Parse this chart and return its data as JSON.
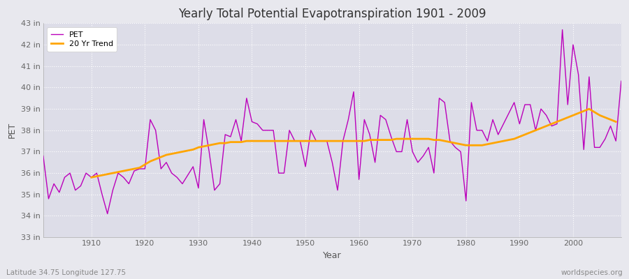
{
  "title": "Yearly Total Potential Evapotranspiration 1901 - 2009",
  "ylabel": "PET",
  "xlabel": "Year",
  "bottom_left": "Latitude 34.75 Longitude 127.75",
  "bottom_right": "worldspecies.org",
  "pet_color": "#BB00BB",
  "trend_color": "#FFA500",
  "fig_bg_color": "#E8E8EE",
  "plot_bg_color": "#DDDDE8",
  "ylim": [
    33,
    43
  ],
  "xlim": [
    1901,
    2009
  ],
  "yticks": [
    33,
    34,
    35,
    36,
    37,
    38,
    39,
    40,
    41,
    42,
    43
  ],
  "xticks": [
    1910,
    1920,
    1930,
    1940,
    1950,
    1960,
    1970,
    1980,
    1990,
    2000
  ],
  "years": [
    1901,
    1902,
    1903,
    1904,
    1905,
    1906,
    1907,
    1908,
    1909,
    1910,
    1911,
    1912,
    1913,
    1914,
    1915,
    1916,
    1917,
    1918,
    1919,
    1920,
    1921,
    1922,
    1923,
    1924,
    1925,
    1926,
    1927,
    1928,
    1929,
    1930,
    1931,
    1932,
    1933,
    1934,
    1935,
    1936,
    1937,
    1938,
    1939,
    1940,
    1941,
    1942,
    1943,
    1944,
    1945,
    1946,
    1947,
    1948,
    1949,
    1950,
    1951,
    1952,
    1953,
    1954,
    1955,
    1956,
    1957,
    1958,
    1959,
    1960,
    1961,
    1962,
    1963,
    1964,
    1965,
    1966,
    1967,
    1968,
    1969,
    1970,
    1971,
    1972,
    1973,
    1974,
    1975,
    1976,
    1977,
    1978,
    1979,
    1980,
    1981,
    1982,
    1983,
    1984,
    1985,
    1986,
    1987,
    1988,
    1989,
    1990,
    1991,
    1992,
    1993,
    1994,
    1995,
    1996,
    1997,
    1998,
    1999,
    2000,
    2001,
    2002,
    2003,
    2004,
    2005,
    2006,
    2007,
    2008,
    2009
  ],
  "pet_values": [
    36.8,
    34.8,
    35.5,
    35.1,
    35.8,
    36.0,
    35.2,
    35.4,
    36.0,
    35.8,
    36.0,
    35.0,
    34.1,
    35.2,
    36.0,
    35.8,
    35.5,
    36.1,
    36.2,
    36.2,
    38.5,
    38.0,
    36.2,
    36.5,
    36.0,
    35.8,
    35.5,
    35.9,
    36.3,
    35.3,
    38.5,
    37.0,
    35.2,
    35.5,
    37.8,
    37.7,
    38.5,
    37.5,
    39.5,
    38.4,
    38.3,
    38.0,
    38.0,
    38.0,
    36.0,
    36.0,
    38.0,
    37.5,
    37.5,
    36.3,
    38.0,
    37.5,
    37.5,
    37.5,
    36.5,
    35.2,
    37.5,
    38.5,
    39.8,
    35.7,
    38.5,
    37.8,
    36.5,
    38.7,
    38.5,
    37.7,
    37.0,
    37.0,
    38.5,
    37.0,
    36.5,
    36.8,
    37.2,
    36.0,
    39.5,
    39.3,
    37.5,
    37.2,
    37.0,
    34.7,
    39.3,
    38.0,
    38.0,
    37.5,
    38.5,
    37.8,
    38.3,
    38.8,
    39.3,
    38.3,
    39.2,
    39.2,
    38.0,
    39.0,
    38.7,
    38.2,
    38.3,
    42.7,
    39.2,
    42.0,
    40.6,
    37.1,
    40.5,
    37.2,
    37.2,
    37.6,
    38.2,
    37.5,
    40.3
  ],
  "trend_start_year": 1910,
  "trend_values": [
    35.8,
    35.85,
    35.9,
    35.95,
    36.0,
    36.05,
    36.1,
    36.15,
    36.2,
    36.25,
    36.4,
    36.55,
    36.65,
    36.75,
    36.85,
    36.9,
    36.95,
    37.0,
    37.05,
    37.1,
    37.2,
    37.25,
    37.3,
    37.35,
    37.4,
    37.4,
    37.45,
    37.45,
    37.45,
    37.5,
    37.5,
    37.5,
    37.5,
    37.5,
    37.5,
    37.5,
    37.5,
    37.5,
    37.5,
    37.5,
    37.5,
    37.5,
    37.5,
    37.5,
    37.5,
    37.5,
    37.5,
    37.5,
    37.5,
    37.5,
    37.5,
    37.5,
    37.55,
    37.55,
    37.55,
    37.55,
    37.55,
    37.6,
    37.6,
    37.6,
    37.6,
    37.6,
    37.6,
    37.6,
    37.55,
    37.55,
    37.5,
    37.45,
    37.4,
    37.35,
    37.3,
    37.3,
    37.3,
    37.3,
    37.35,
    37.4,
    37.45,
    37.5,
    37.55,
    37.6,
    37.7,
    37.8,
    37.9,
    38.0,
    38.1,
    38.2,
    38.3,
    38.4,
    38.5,
    38.6,
    38.7,
    38.8,
    38.9,
    39.0,
    38.85,
    38.7,
    38.6,
    38.5,
    38.4
  ]
}
